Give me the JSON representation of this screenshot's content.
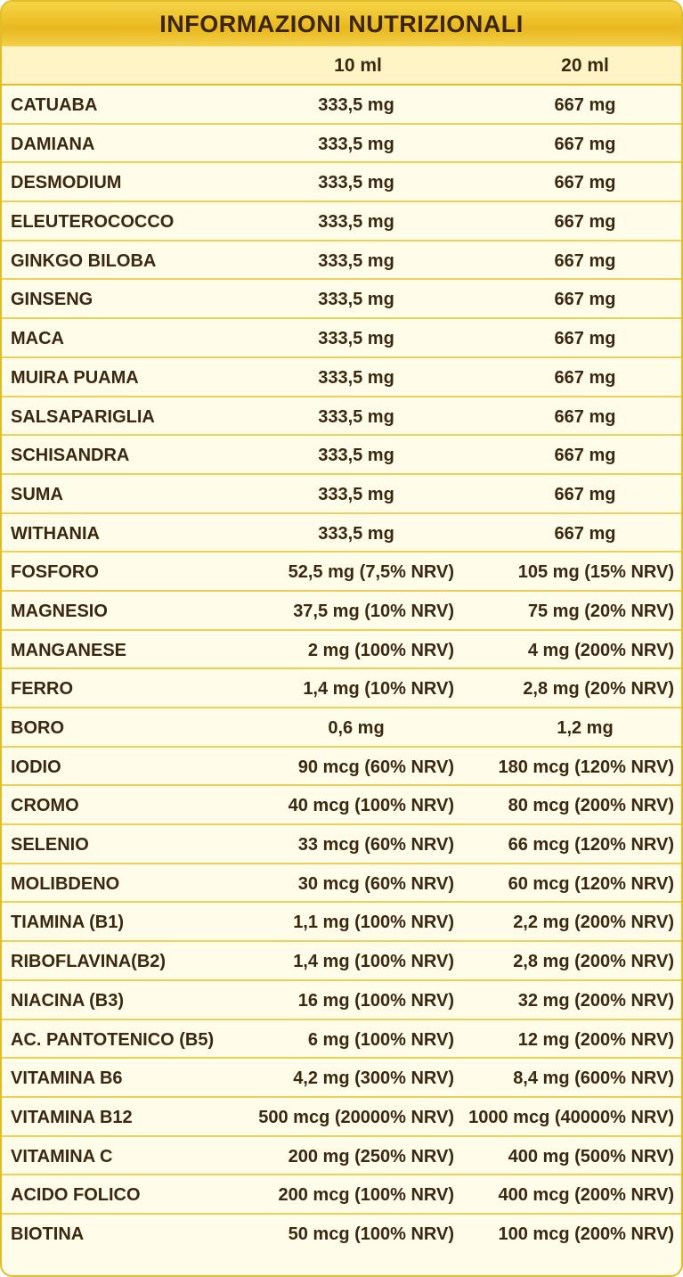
{
  "header": {
    "title": "INFORMAZIONI NUTRIZIONALI",
    "columns": [
      "10 ml",
      "20 ml"
    ]
  },
  "table": {
    "rows": [
      [
        "CATUABA",
        "333,5 mg",
        "667 mg"
      ],
      [
        "DAMIANA",
        "333,5 mg",
        "667 mg"
      ],
      [
        "DESMODIUM",
        "333,5 mg",
        "667 mg"
      ],
      [
        "ELEUTEROCOCCO",
        "333,5 mg",
        "667 mg"
      ],
      [
        "GINKGO BILOBA",
        "333,5 mg",
        "667 mg"
      ],
      [
        "GINSENG",
        "333,5 mg",
        "667 mg"
      ],
      [
        "MACA",
        "333,5 mg",
        "667 mg"
      ],
      [
        "MUIRA PUAMA",
        "333,5 mg",
        "667 mg"
      ],
      [
        "SALSAPARIGLIA",
        "333,5 mg",
        "667 mg"
      ],
      [
        "SCHISANDRA",
        "333,5 mg",
        "667 mg"
      ],
      [
        "SUMA",
        "333,5 mg",
        "667 mg"
      ],
      [
        "WITHANIA",
        "333,5 mg",
        "667 mg"
      ],
      [
        "FOSFORO",
        "52,5 mg (7,5% NRV)",
        "105 mg (15% NRV)"
      ],
      [
        "MAGNESIO",
        "37,5 mg (10% NRV)",
        "75 mg (20% NRV)"
      ],
      [
        "MANGANESE",
        "2 mg (100% NRV)",
        "4 mg (200% NRV)"
      ],
      [
        "FERRO",
        "1,4 mg (10% NRV)",
        "2,8 mg (20% NRV)"
      ],
      [
        "BORO",
        "0,6 mg",
        "1,2 mg"
      ],
      [
        "IODIO",
        "90 mcg (60% NRV)",
        "180 mcg (120% NRV)"
      ],
      [
        "CROMO",
        "40 mcg (100% NRV)",
        "80 mcg (200% NRV)"
      ],
      [
        "SELENIO",
        "33 mcg (60% NRV)",
        "66 mcg (120% NRV)"
      ],
      [
        "MOLIBDENO",
        "30 mcg (60% NRV)",
        "60 mcg (120% NRV)"
      ],
      [
        "TIAMINA (B1)",
        "1,1 mg (100% NRV)",
        "2,2 mg (200% NRV)"
      ],
      [
        "RIBOFLAVINA(B2)",
        "1,4 mg (100% NRV)",
        "2,8 mg (200% NRV)"
      ],
      [
        "NIACINA (B3)",
        "16 mg (100% NRV)",
        "32 mg (200% NRV)"
      ],
      [
        "AC. PANTOTENICO (B5)",
        "6 mg (100% NRV)",
        "12 mg (200% NRV)"
      ],
      [
        "VITAMINA B6",
        "4,2 mg (300% NRV)",
        "8,4 mg (600% NRV)"
      ],
      [
        "VITAMINA B12",
        "500 mcg (20000% NRV)",
        "1000 mcg (40000% NRV)"
      ],
      [
        "VITAMINA C",
        "200 mg (250% NRV)",
        "400 mg (500% NRV)"
      ],
      [
        "ACIDO FOLICO",
        "200 mcg (100% NRV)",
        "400 mcg (200% NRV)"
      ],
      [
        "BIOTINA",
        "50 mcg (100% NRV)",
        "100 mcg (200% NRV)"
      ]
    ]
  }
}
